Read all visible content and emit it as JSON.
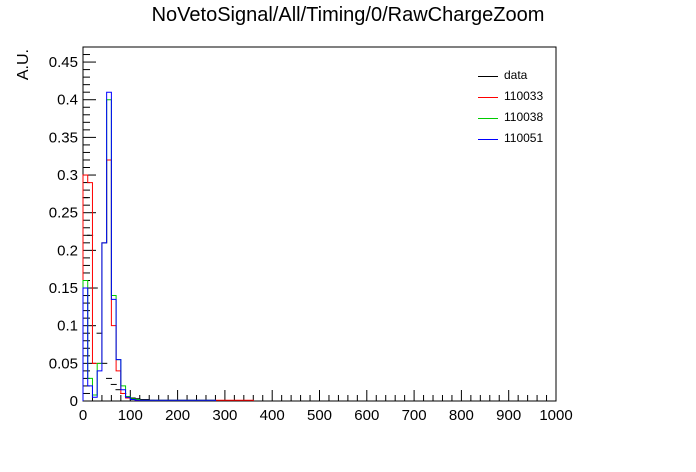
{
  "page": {
    "title": "NoVetoSignal/All/Timing/0/RawChargeZoom"
  },
  "chart_data": {
    "type": "histogram",
    "title": "NoVetoSignal/All/Timing/0/RawChargeZoom",
    "xlabel": "",
    "ylabel": "A.U.",
    "xlim": [
      0,
      1000
    ],
    "ylim": [
      0,
      0.47
    ],
    "bin_width": 10,
    "x_ticks": [
      0,
      100,
      200,
      300,
      400,
      500,
      600,
      700,
      800,
      900,
      1000
    ],
    "y_ticks": [
      0,
      0.05,
      0.1,
      0.15,
      0.2,
      0.25,
      0.3,
      0.35,
      0.4,
      0.45
    ],
    "x_tick_labels": [
      "0",
      "100",
      "200",
      "300",
      "400",
      "500",
      "600",
      "700",
      "800",
      "900",
      "1000"
    ],
    "y_tick_labels": [
      "0",
      "0.05",
      "0.1",
      "0.15",
      "0.2",
      "0.25",
      "0.3",
      "0.35",
      "0.4",
      "0.45"
    ],
    "grid": false,
    "legend_position": "top-right",
    "series": [
      {
        "name": "data",
        "color": "#000000",
        "style": "markers",
        "values": [
          0.27,
          0.22,
          0.15,
          0.09,
          0.05,
          0.03,
          0.022,
          0.015,
          0.01,
          0.006,
          0.004,
          0.003,
          0.002,
          0.002,
          0.001
        ]
      },
      {
        "name": "110033",
        "color": "#ff0000",
        "style": "step",
        "values": [
          0.3,
          0.29,
          0.05,
          0.05,
          0.21,
          0.32,
          0.1,
          0.04,
          0.01,
          0.004,
          0.002,
          0.001,
          0.001,
          0.001,
          0.001,
          0.001,
          0.001,
          0.001,
          0.001,
          0.001,
          0.001,
          0.001,
          0.001,
          0.001,
          0.001,
          0.001,
          0.001,
          0.001,
          0.001,
          0.001,
          0.001,
          0.001,
          0.001,
          0.001,
          0.001,
          0.001
        ]
      },
      {
        "name": "110038",
        "color": "#00cc00",
        "style": "step",
        "values": [
          0.16,
          0.03,
          0.008,
          0.05,
          0.21,
          0.4,
          0.14,
          0.055,
          0.02,
          0.006,
          0.003,
          0.002,
          0.001,
          0.001,
          0.001,
          0.001,
          0.001,
          0.001,
          0.001,
          0.001,
          0.001,
          0.001,
          0.001,
          0.001,
          0.001,
          0.001,
          0.001,
          0.001
        ]
      },
      {
        "name": "110051",
        "color": "#0000ff",
        "style": "step",
        "values": [
          0.15,
          0.02,
          0.005,
          0.04,
          0.21,
          0.41,
          0.135,
          0.055,
          0.015,
          0.005,
          0.002,
          0.001,
          0.001,
          0.001,
          0.001,
          0.001,
          0.001,
          0.001,
          0.001,
          0.001,
          0.001,
          0.001,
          0.001,
          0.001,
          0.001,
          0.001,
          0.001,
          0.001
        ]
      }
    ]
  }
}
